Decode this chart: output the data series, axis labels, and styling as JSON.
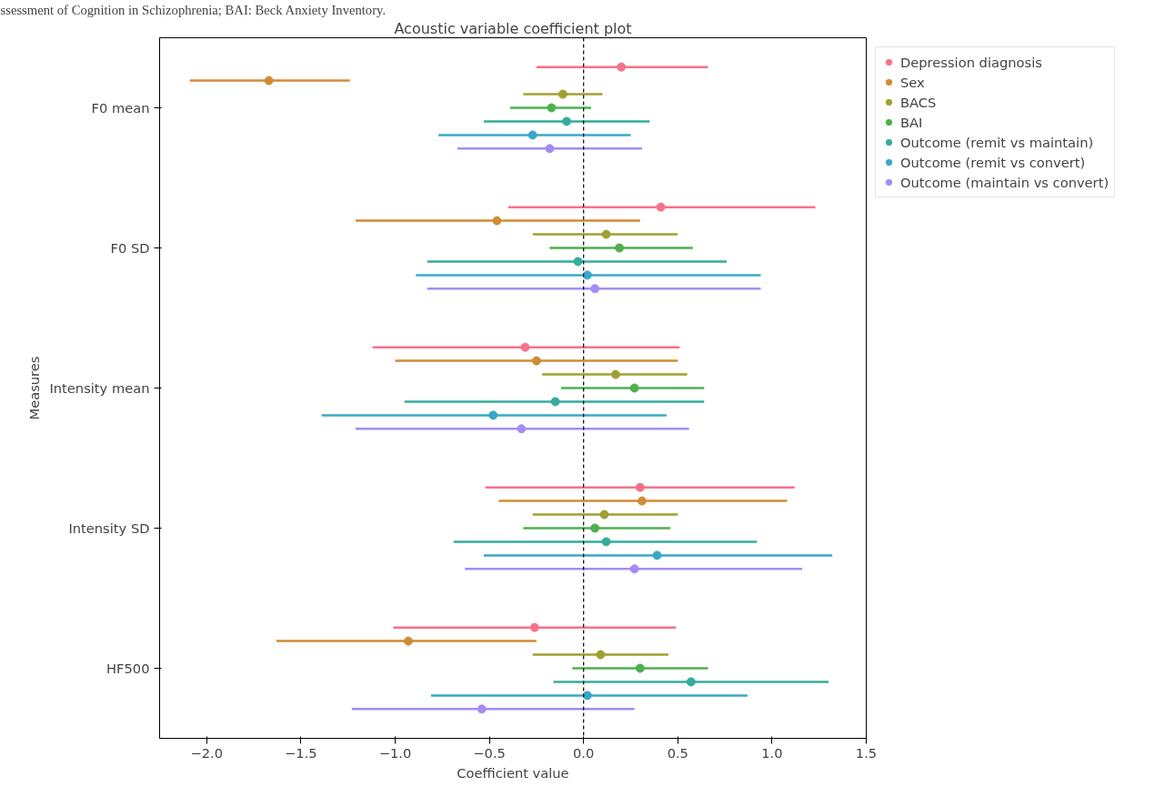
{
  "chart_data": {
    "type": "scatter",
    "orientation": "horizontal",
    "title": "Acoustic variable coefficient plot",
    "xlabel": "Coefficient value",
    "ylabel": "Measures",
    "annotations": [
      "ssessment of Cognition in Schizophrenia; BAI: Beck Anxiety Inventory."
    ],
    "categories": [
      "F0 mean",
      "F0 SD",
      "Intensity mean",
      "Intensity SD",
      "HF500"
    ],
    "xlim": [
      -2.25,
      1.5
    ],
    "xticks": [
      {
        "value": -2.0,
        "label": "−2.0"
      },
      {
        "value": -1.5,
        "label": "−1.5"
      },
      {
        "value": -1.0,
        "label": "−1.0"
      },
      {
        "value": -0.5,
        "label": "−0.5"
      },
      {
        "value": 0.0,
        "label": "0.0"
      },
      {
        "value": 0.5,
        "label": "0.5"
      },
      {
        "value": 1.0,
        "label": "1.0"
      },
      {
        "value": 1.5,
        "label": "1.5"
      }
    ],
    "grid": false,
    "legend": "top right",
    "marker": "circle",
    "ref_lines": [
      {
        "axis": "x",
        "value": 0,
        "color": "#000000",
        "line_style": "dashed"
      }
    ],
    "series": [
      {
        "name": "Depression diagnosis",
        "color": "#f77189",
        "values": [
          0.2,
          0.41,
          -0.31,
          0.3,
          -0.26
        ],
        "errors": [
          [
            -0.25,
            0.66
          ],
          [
            -0.4,
            1.23
          ],
          [
            -1.12,
            0.51
          ],
          [
            -0.52,
            1.12
          ],
          [
            -1.01,
            0.49
          ]
        ]
      },
      {
        "name": "Sex",
        "color": "#d08c34",
        "values": [
          -1.67,
          -0.46,
          -0.25,
          0.31,
          -0.93
        ],
        "errors": [
          [
            -2.09,
            -1.24
          ],
          [
            -1.21,
            0.3
          ],
          [
            -1.0,
            0.5
          ],
          [
            -0.45,
            1.08
          ],
          [
            -1.63,
            -0.25
          ]
        ]
      },
      {
        "name": "BACS",
        "color": "#a0a032",
        "values": [
          -0.11,
          0.12,
          0.17,
          0.11,
          0.09
        ],
        "errors": [
          [
            -0.32,
            0.1
          ],
          [
            -0.27,
            0.5
          ],
          [
            -0.22,
            0.55
          ],
          [
            -0.27,
            0.5
          ],
          [
            -0.27,
            0.45
          ]
        ]
      },
      {
        "name": "BAI",
        "color": "#4fb04f",
        "values": [
          -0.17,
          0.19,
          0.27,
          0.06,
          0.3
        ],
        "errors": [
          [
            -0.39,
            0.04
          ],
          [
            -0.18,
            0.58
          ],
          [
            -0.12,
            0.64
          ],
          [
            -0.32,
            0.46
          ],
          [
            -0.06,
            0.66
          ]
        ]
      },
      {
        "name": "Outcome (remit vs maintain)",
        "color": "#35ac9a",
        "values": [
          -0.09,
          -0.03,
          -0.15,
          0.12,
          0.57
        ],
        "errors": [
          [
            -0.53,
            0.35
          ],
          [
            -0.83,
            0.76
          ],
          [
            -0.95,
            0.64
          ],
          [
            -0.69,
            0.92
          ],
          [
            -0.16,
            1.3
          ]
        ]
      },
      {
        "name": "Outcome (remit vs convert)",
        "color": "#38a8c8",
        "values": [
          -0.27,
          0.02,
          -0.48,
          0.39,
          0.02
        ],
        "errors": [
          [
            -0.77,
            0.25
          ],
          [
            -0.89,
            0.94
          ],
          [
            -1.39,
            0.44
          ],
          [
            -0.53,
            1.32
          ],
          [
            -0.81,
            0.87
          ]
        ]
      },
      {
        "name": "Outcome (maintain vs convert)",
        "color": "#a48cf4",
        "values": [
          -0.18,
          0.06,
          -0.33,
          0.27,
          -0.54
        ],
        "errors": [
          [
            -0.67,
            0.31
          ],
          [
            -0.83,
            0.94
          ],
          [
            -1.21,
            0.56
          ],
          [
            -0.63,
            1.16
          ],
          [
            -1.23,
            0.27
          ]
        ]
      }
    ]
  }
}
